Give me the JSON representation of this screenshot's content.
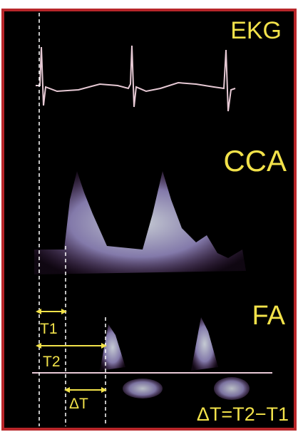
{
  "labels": {
    "ekg": "EKG",
    "cca": "CCA",
    "fa": "FA",
    "t1": "T1",
    "t2": "T2",
    "delta_t": "ΔT",
    "formula": "ΔT=T2−T1"
  }
}
